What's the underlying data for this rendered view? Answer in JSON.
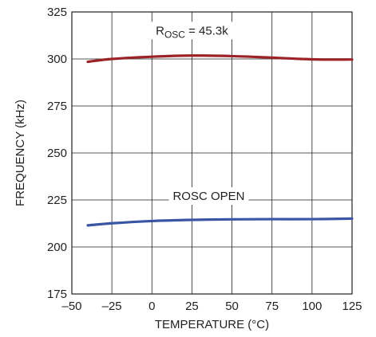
{
  "chart_data": {
    "type": "line",
    "title": "",
    "xlabel": "TEMPERATURE (°C)",
    "ylabel": "FREQUENCY (kHz)",
    "xlim": [
      -50,
      125
    ],
    "ylim": [
      175,
      325
    ],
    "xticks": [
      -50,
      -25,
      0,
      25,
      50,
      75,
      100,
      125
    ],
    "yticks": [
      175,
      200,
      225,
      250,
      275,
      300,
      325
    ],
    "xtick_labels": [
      "–50",
      "–25",
      "0",
      "25",
      "50",
      "75",
      "100",
      "125"
    ],
    "ytick_labels": [
      "175",
      "200",
      "225",
      "250",
      "275",
      "300",
      "325"
    ],
    "grid": true,
    "legend": "none",
    "series": [
      {
        "color": "#9b2226",
        "x": [
          -40,
          -25,
          0,
          25,
          50,
          75,
          100,
          125
        ],
        "y": [
          298.5,
          300,
          301.2,
          301.8,
          301.5,
          300.7,
          299.8,
          299.7
        ]
      },
      {
        "color": "#3a55a4",
        "x": [
          -40,
          -25,
          0,
          25,
          50,
          75,
          100,
          125
        ],
        "y": [
          211.5,
          212.6,
          213.8,
          214.4,
          214.7,
          214.8,
          214.8,
          215.1
        ]
      }
    ],
    "annotations": [
      {
        "main": "R",
        "sub": "OSC",
        "rest": " = 45.3k",
        "x": 25,
        "y": 313
      },
      {
        "main": "ROSC OPEN",
        "x": 35.5,
        "y": 225
      }
    ]
  }
}
